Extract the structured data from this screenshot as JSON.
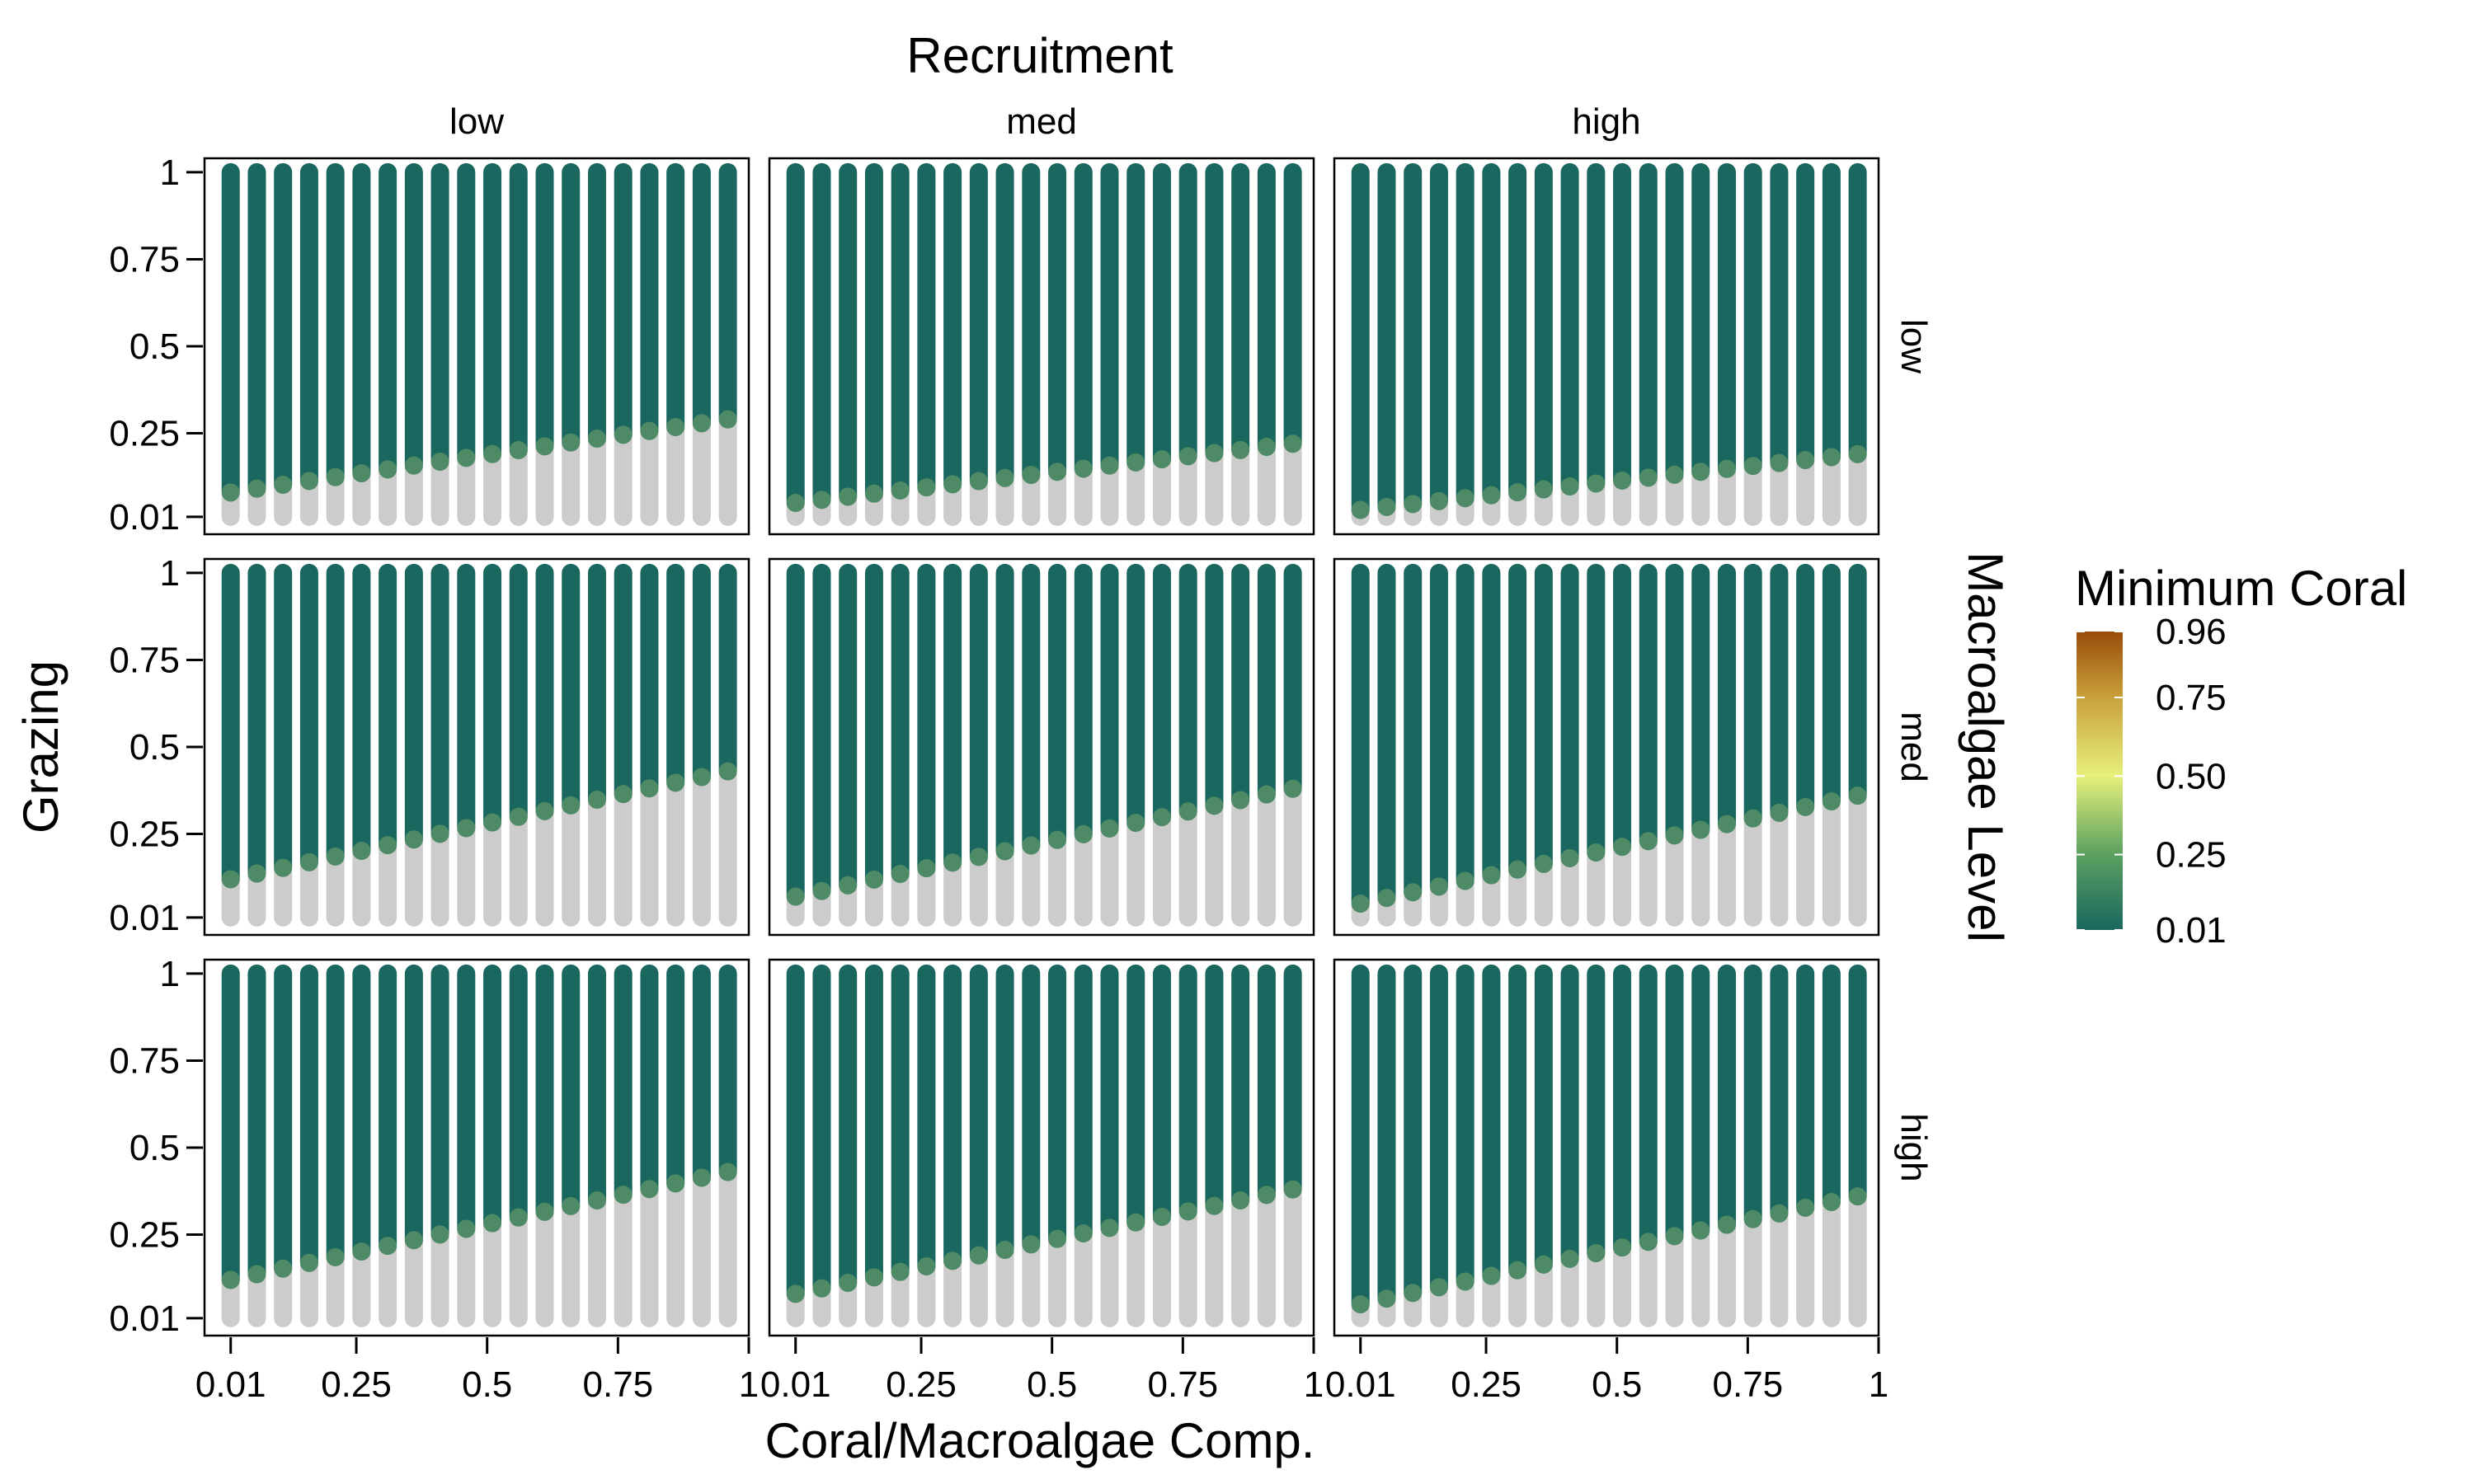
{
  "chart_data": {
    "type": "scatter",
    "title": "Recruitment",
    "xlabel": "Coral/Macroalgae Comp.",
    "ylabel": "Grazing",
    "right_strip_title": "Macroalgae Level",
    "col_facets": [
      "low",
      "med",
      "high"
    ],
    "row_facets": [
      "low",
      "med",
      "high"
    ],
    "x_ticks": [
      {
        "value": 0.01,
        "label": "0.01"
      },
      {
        "value": 0.25,
        "label": "0.25"
      },
      {
        "value": 0.5,
        "label": "0.5"
      },
      {
        "value": 0.75,
        "label": "0.75"
      },
      {
        "value": 1,
        "label": "1"
      }
    ],
    "y_ticks": [
      {
        "value": 0.01,
        "label": "0.01"
      },
      {
        "value": 0.25,
        "label": "0.25"
      },
      {
        "value": 0.5,
        "label": "0.5"
      },
      {
        "value": 0.75,
        "label": "0.75"
      },
      {
        "value": 1,
        "label": "1"
      }
    ],
    "xlim": [
      -0.04,
      1.0
    ],
    "ylim": [
      -0.04,
      1.04
    ],
    "x_values": [
      0.01,
      0.06,
      0.11,
      0.16,
      0.21,
      0.26,
      0.31,
      0.36,
      0.41,
      0.46,
      0.51,
      0.56,
      0.61,
      0.66,
      0.71,
      0.76,
      0.81,
      0.86,
      0.91,
      0.96
    ],
    "y_range": [
      0.01,
      1
    ],
    "no_data_color": "#cccccc",
    "point_color": "#1a675f",
    "threshold_note": "grazing value below which minimum coral is not computed (grey) per x column",
    "panels": [
      {
        "row": "low",
        "col": "low",
        "threshold_start": 0.08,
        "threshold_end": 0.29
      },
      {
        "row": "low",
        "col": "med",
        "threshold_start": 0.05,
        "threshold_end": 0.22
      },
      {
        "row": "low",
        "col": "high",
        "threshold_start": 0.03,
        "threshold_end": 0.19
      },
      {
        "row": "med",
        "col": "low",
        "threshold_start": 0.12,
        "threshold_end": 0.43
      },
      {
        "row": "med",
        "col": "med",
        "threshold_start": 0.07,
        "threshold_end": 0.38
      },
      {
        "row": "med",
        "col": "high",
        "threshold_start": 0.05,
        "threshold_end": 0.36
      },
      {
        "row": "high",
        "col": "low",
        "threshold_start": 0.12,
        "threshold_end": 0.43
      },
      {
        "row": "high",
        "col": "med",
        "threshold_start": 0.08,
        "threshold_end": 0.38
      },
      {
        "row": "high",
        "col": "high",
        "threshold_start": 0.05,
        "threshold_end": 0.36
      }
    ],
    "legend": {
      "title": "Minimum Coral",
      "breaks": [
        {
          "value": 0.96,
          "label": "0.96"
        },
        {
          "value": 0.75,
          "label": "0.75"
        },
        {
          "value": 0.5,
          "label": "0.50"
        },
        {
          "value": 0.25,
          "label": "0.25"
        },
        {
          "value": 0.01,
          "label": "0.01"
        }
      ],
      "range": [
        0.01,
        0.96
      ],
      "colors": [
        {
          "value": 0.01,
          "color": "#1a675f"
        },
        {
          "value": 0.25,
          "color": "#5aa060"
        },
        {
          "value": 0.5,
          "color": "#e6f07a"
        },
        {
          "value": 0.75,
          "color": "#c9a13a"
        },
        {
          "value": 0.96,
          "color": "#9a4c0a"
        }
      ]
    }
  }
}
